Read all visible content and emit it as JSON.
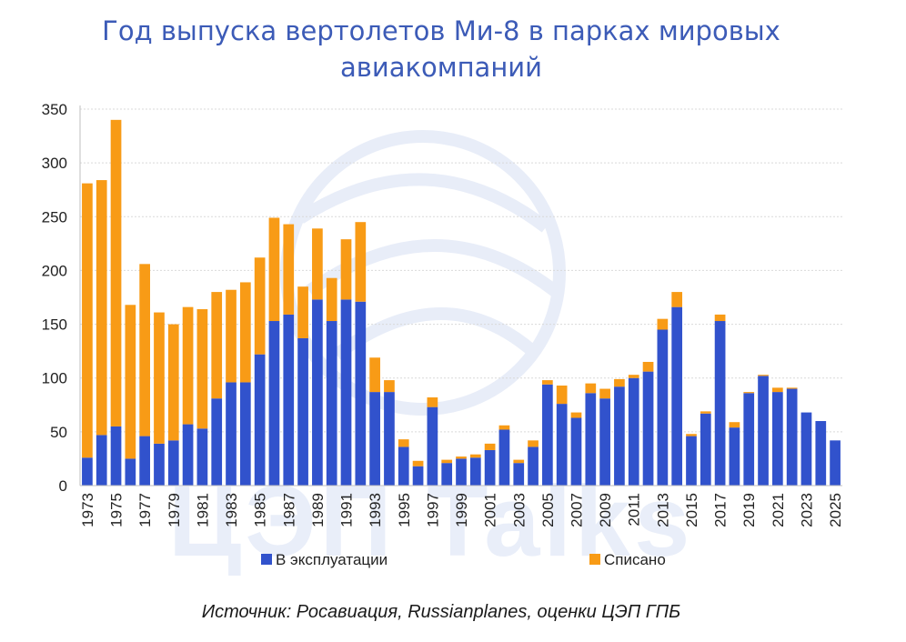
{
  "title": {
    "line1": "Год выпуска вертолетов Ми-8   в парках мировых",
    "line2": "авиакомпаний"
  },
  "source": "Источник: Росавиация, Russianplanes, оценки ЦЭП ГПБ",
  "watermark": "ЦЭП Talks",
  "colors": {
    "in_service": "#3152cc",
    "written_off": "#f89b16",
    "title": "#3c5bb7",
    "grid": "#d9d9d9"
  },
  "chart_data": {
    "type": "bar",
    "stacked": true,
    "categories": [
      "1973",
      "1974",
      "1975",
      "1976",
      "1977",
      "1978",
      "1979",
      "1980",
      "1981",
      "1982",
      "1983",
      "1984",
      "1985",
      "1986",
      "1987",
      "1988",
      "1989",
      "1990",
      "1991",
      "1992",
      "1993",
      "1994",
      "1995",
      "1996",
      "1997",
      "1998",
      "1999",
      "2000",
      "2001",
      "2002",
      "2003",
      "2004",
      "2005",
      "2006",
      "2007",
      "2008",
      "2009",
      "2010",
      "2011",
      "2012",
      "2013",
      "2014",
      "2015",
      "2016",
      "2017",
      "2018",
      "2019",
      "2020",
      "2021",
      "2022",
      "2023",
      "2024",
      "2025"
    ],
    "tick_labels": [
      "1973",
      "1975",
      "1977",
      "1979",
      "1981",
      "1983",
      "1985",
      "1987",
      "1989",
      "1991",
      "1993",
      "1995",
      "1997",
      "1999",
      "2001",
      "2003",
      "2005",
      "2007",
      "2009",
      "2011",
      "2013",
      "2015",
      "2017",
      "2019",
      "2021",
      "2023",
      "2025"
    ],
    "series": [
      {
        "name": "В эксплуатации",
        "values": [
          26,
          47,
          55,
          25,
          46,
          39,
          42,
          57,
          53,
          81,
          96,
          96,
          122,
          153,
          159,
          137,
          173,
          153,
          173,
          171,
          87,
          87,
          36,
          18,
          73,
          21,
          25,
          26,
          33,
          52,
          21,
          36,
          94,
          76,
          63,
          86,
          81,
          92,
          100,
          106,
          145,
          166,
          46,
          67,
          153,
          54,
          86,
          102,
          87,
          90,
          68,
          60,
          42
        ]
      },
      {
        "name": "Списано",
        "values": [
          255,
          237,
          285,
          143,
          160,
          122,
          108,
          109,
          111,
          99,
          86,
          93,
          90,
          96,
          84,
          48,
          66,
          40,
          56,
          74,
          32,
          11,
          7,
          5,
          9,
          3,
          2,
          3,
          6,
          4,
          3,
          6,
          4,
          17,
          5,
          9,
          9,
          7,
          3,
          9,
          10,
          14,
          2,
          2,
          6,
          5,
          1,
          1,
          4,
          1,
          0,
          0,
          0
        ]
      }
    ],
    "yticks": [
      0,
      50,
      100,
      150,
      200,
      250,
      300,
      350
    ],
    "ylim": [
      0,
      350
    ],
    "xlabel": "",
    "ylabel": "",
    "grid": true,
    "legend_position": "bottom"
  }
}
